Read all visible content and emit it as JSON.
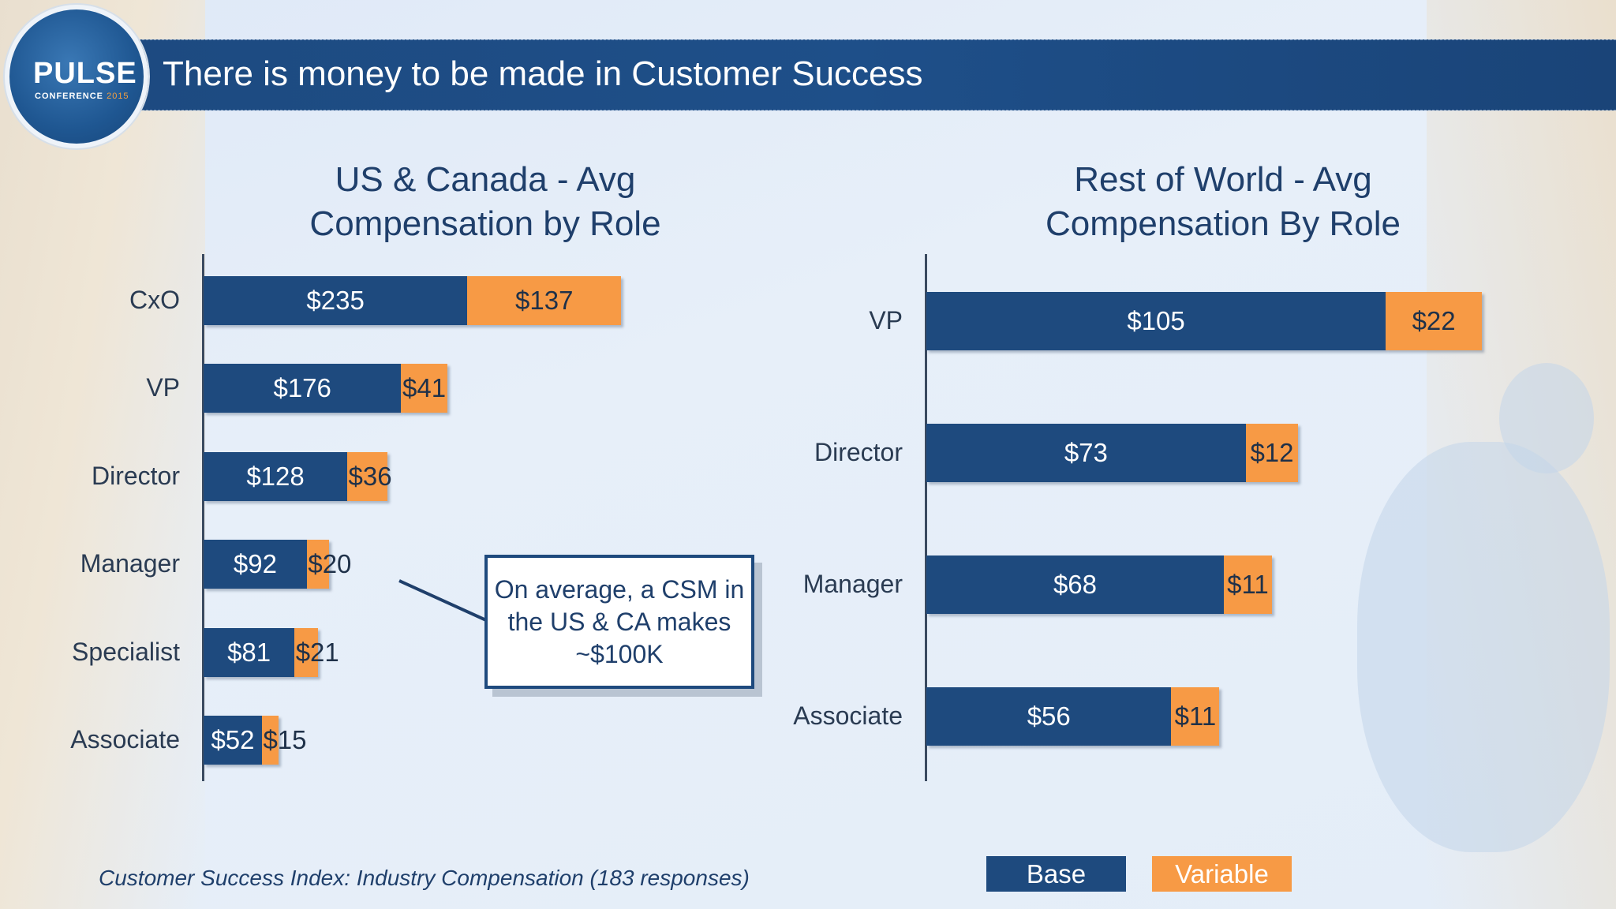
{
  "header": {
    "logo_text": "PULSE",
    "logo_subtext": "CONFERENCE",
    "logo_year": "2015",
    "title": "There is money to be made in Customer Success"
  },
  "chart_data": [
    {
      "type": "bar",
      "orientation": "horizontal",
      "stacked": true,
      "title": "US & Canada - Avg Compensation by Role",
      "categories": [
        "CxO",
        "VP",
        "Director",
        "Manager",
        "Specialist",
        "Associate"
      ],
      "series": [
        {
          "name": "Base",
          "values": [
            235,
            176,
            128,
            92,
            81,
            52
          ],
          "labels": [
            "$235",
            "$176",
            "$128",
            "$92",
            "$81",
            "$52"
          ],
          "color": "#1e4a7e"
        },
        {
          "name": "Variable",
          "values": [
            137,
            41,
            36,
            20,
            21,
            15
          ],
          "labels": [
            "$137",
            "$41",
            "$36",
            "$20",
            "$21",
            "$15"
          ],
          "color": "#f79a45"
        }
      ]
    },
    {
      "type": "bar",
      "orientation": "horizontal",
      "stacked": true,
      "title": "Rest of World - Avg Compensation By Role",
      "categories": [
        "VP",
        "Director",
        "Manager",
        "Associate"
      ],
      "series": [
        {
          "name": "Base",
          "values": [
            105,
            73,
            68,
            56
          ],
          "labels": [
            "$105",
            "$73",
            "$68",
            "$56"
          ],
          "color": "#1e4a7e"
        },
        {
          "name": "Variable",
          "values": [
            22,
            12,
            11,
            11
          ],
          "labels": [
            "$22",
            "$12",
            "$11",
            "$11"
          ],
          "color": "#f79a45"
        }
      ]
    }
  ],
  "callout": {
    "text": "On average, a CSM in the US & CA makes ~$100K"
  },
  "footnote": "Customer Success Index: Industry Compensation (183 responses)",
  "legend": {
    "base": "Base",
    "variable": "Variable"
  }
}
